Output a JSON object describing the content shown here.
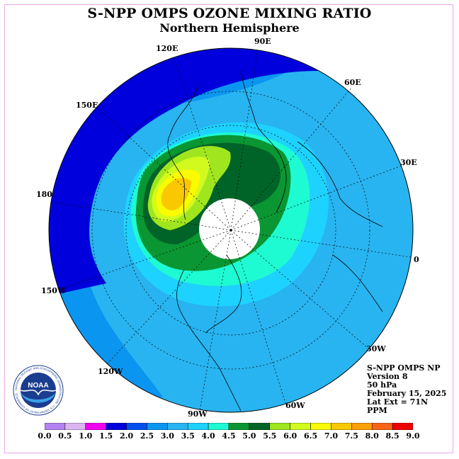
{
  "title": "S-NPP OMPS OZONE MIXING RATIO",
  "subtitle": "Northern Hemisphere",
  "longitude_labels": [
    {
      "text": "90E"
    },
    {
      "text": "60E"
    },
    {
      "text": "30E"
    },
    {
      "text": "0"
    },
    {
      "text": "30W"
    },
    {
      "text": "60W"
    },
    {
      "text": "90W"
    },
    {
      "text": "120W"
    },
    {
      "text": "150W"
    },
    {
      "text": "180"
    },
    {
      "text": "150E"
    },
    {
      "text": "120E"
    }
  ],
  "info": {
    "instrument": "S-NPP OMPS NP",
    "version": "Version 8",
    "level": "50 hPa",
    "date": "February 15, 2025",
    "lat_ext": "Lat Ext = 71N",
    "units": "PPM"
  },
  "colorbar": {
    "ticks": [
      "0.0",
      "0.5",
      "1.0",
      "1.5",
      "2.0",
      "2.5",
      "3.0",
      "3.5",
      "4.0",
      "4.5",
      "5.0",
      "5.5",
      "6.0",
      "6.5",
      "7.0",
      "7.5",
      "8.0",
      "8.5",
      "9.0"
    ],
    "colors": [
      "#b482f0",
      "#dcb4f0",
      "#f000f0",
      "#0000dc",
      "#0050f0",
      "#0a96f0",
      "#28b4f0",
      "#1ed2ff",
      "#1efad2",
      "#0a9632",
      "#006428",
      "#a0e61e",
      "#d2fa1e",
      "#fafa00",
      "#fac800",
      "#faa000",
      "#fa6414",
      "#f00000",
      "#785030"
    ]
  },
  "logo": {
    "text": "NOAA",
    "ring_text": "NATIONAL OCEANIC AND ATMOSPHERIC ADMINISTRATION · U.S. DEPARTMENT OF COMMERCE"
  },
  "colors": {
    "frame": "#e6a8e6",
    "map_outline": "#000000"
  }
}
